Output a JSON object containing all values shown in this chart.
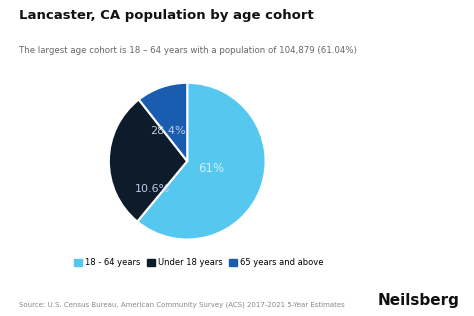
{
  "title": "Lancaster, CA population by age cohort",
  "subtitle": "The largest age cohort is 18 – 64 years with a population of 104,879 (61.04%)",
  "slices": [
    61.0,
    28.4,
    10.6
  ],
  "colors": [
    "#56C8F0",
    "#0D1B2A",
    "#1A5CB0"
  ],
  "legend_labels": [
    "18 - 64 years",
    "Under 18 years",
    "65 years and above"
  ],
  "legend_colors": [
    "#56C8F0",
    "#0D1B2A",
    "#1A5CB0"
  ],
  "pct_labels": [
    "61%",
    "28.4%",
    "10.6%"
  ],
  "pct_label_colors": [
    "#d0eef8",
    "#c0ccd8",
    "#c0c8e8"
  ],
  "source_text": "Source: U.S. Census Bureau, American Community Survey (ACS) 2017-2021 5-Year Estimates",
  "brand": "Neilsberg",
  "background_color": "#ffffff",
  "startangle": 90
}
